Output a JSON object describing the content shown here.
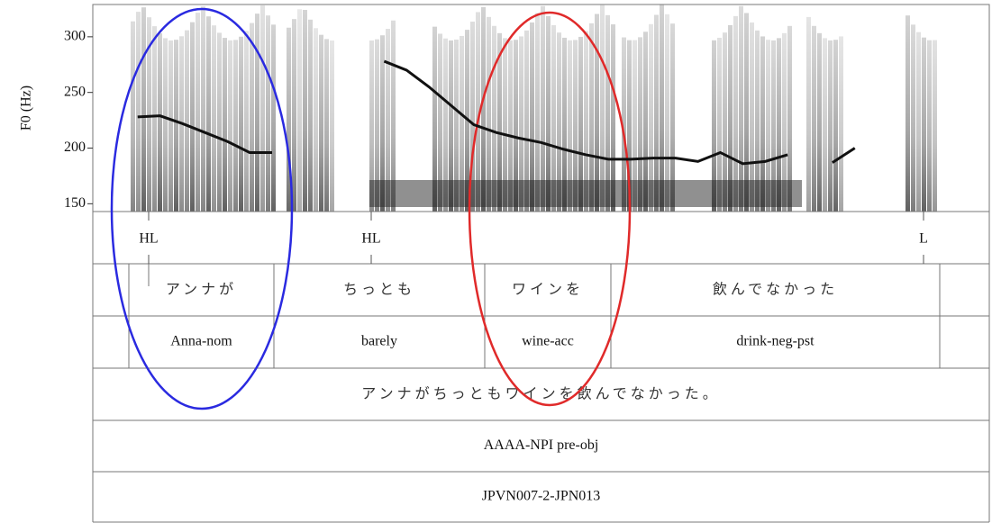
{
  "chart_data": {
    "type": "line",
    "y_label": "F0 (Hz)",
    "ylim": [
      143,
      329
    ],
    "yticks": [
      150,
      200,
      250,
      300
    ],
    "series": [
      {
        "color": "#111111",
        "values": [
          null,
          null,
          228,
          229,
          222,
          214,
          206,
          196,
          196,
          null,
          null,
          null,
          null,
          278,
          270,
          255,
          238,
          221,
          214,
          209,
          205,
          199,
          194,
          190,
          190,
          191,
          191,
          188,
          196,
          186,
          188,
          194,
          null,
          187,
          200,
          null,
          null,
          null,
          null,
          null
        ]
      }
    ]
  },
  "tiers": [
    {
      "points": [
        "HL",
        "HL",
        "L"
      ]
    },
    {
      "intervals": [
        "アンナが",
        "ちっとも",
        "ワインを",
        "飲んでなかった"
      ]
    },
    {
      "intervals": [
        "Anna-nom",
        "barely",
        "wine-acc",
        "drink-neg-pst"
      ]
    },
    {
      "intervals": [
        "アンナがちっともワインを飲んでなかった。"
      ]
    },
    {
      "intervals": [
        "AAAA-NPI pre-obj"
      ]
    },
    {
      "intervals": [
        "JPVN007-2-JPN013"
      ]
    }
  ]
}
